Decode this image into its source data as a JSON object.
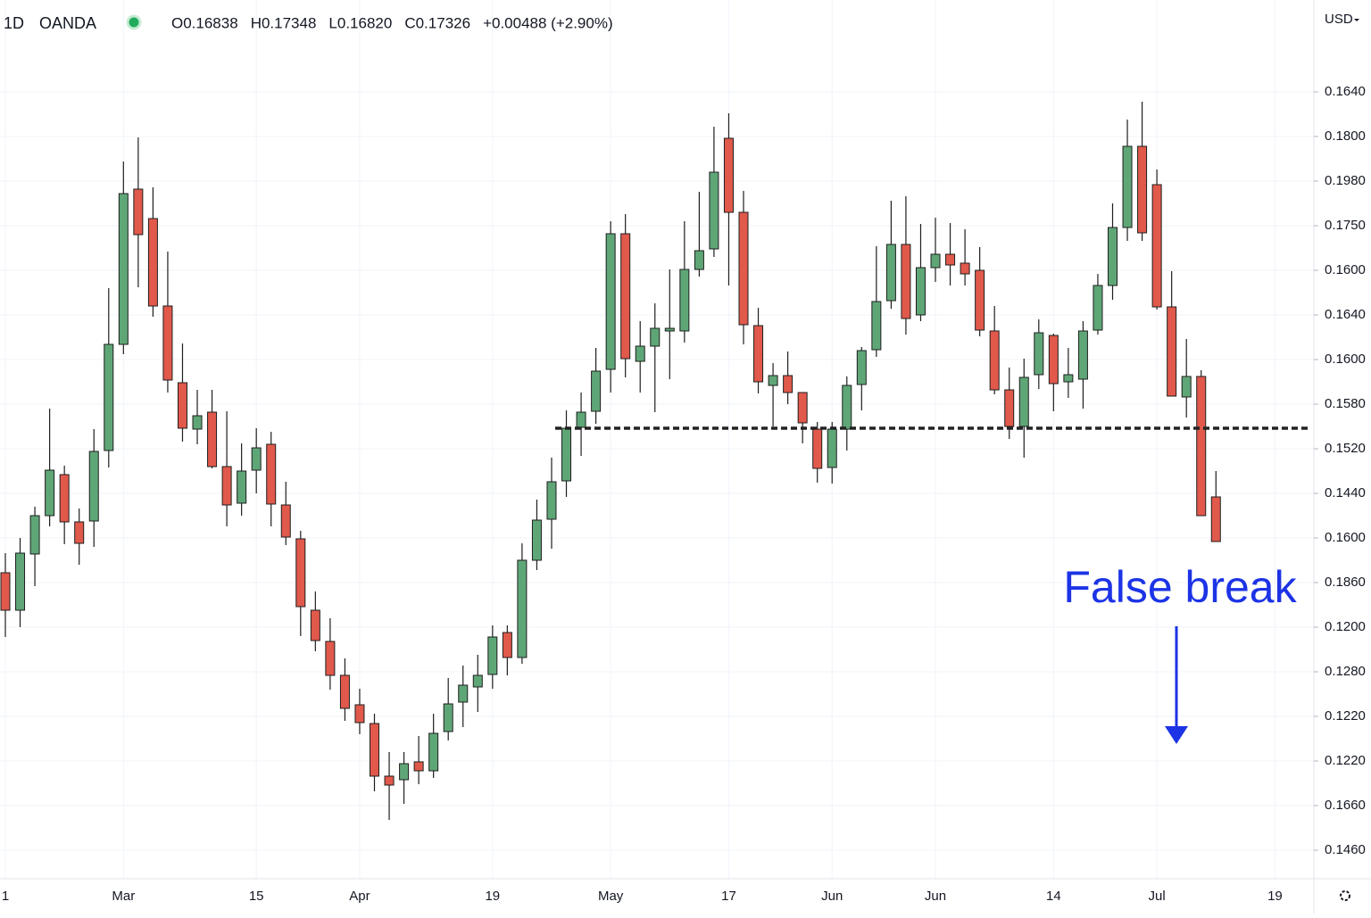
{
  "header": {
    "interval": "1D",
    "source": "OANDA",
    "ohlc": [
      "O0.16838",
      "H0.17348",
      "L0.16820",
      "C0.17326",
      "+0.00488 (+2.90%)"
    ],
    "currency": "USD"
  },
  "chart_data": {
    "type": "candlestick",
    "categories": [
      "1",
      null,
      null,
      null,
      null,
      null,
      null,
      null,
      "Mar",
      null,
      null,
      null,
      null,
      null,
      null,
      null,
      null,
      "15",
      null,
      null,
      null,
      null,
      null,
      null,
      "Apr",
      null,
      null,
      null,
      null,
      null,
      null,
      null,
      null,
      "19",
      null,
      null,
      null,
      null,
      null,
      null,
      null,
      "May",
      null,
      null,
      null,
      null,
      null,
      null,
      null,
      "17",
      null,
      null,
      null,
      null,
      null,
      null,
      "Jun",
      null,
      null,
      null,
      null,
      null,
      null,
      "Jun",
      null,
      null,
      null,
      null,
      null,
      null,
      null,
      "14",
      null,
      null,
      null,
      null,
      null,
      null,
      "Jul",
      null,
      null,
      null,
      null,
      null,
      null,
      null,
      "19"
    ],
    "open": [
      6.22,
      5.38,
      6.64,
      7.5,
      8.42,
      7.36,
      7.38,
      8.96,
      11.34,
      14.82,
      14.16,
      12.2,
      10.48,
      9.44,
      9.82,
      8.6,
      7.78,
      8.52,
      9.1,
      7.74,
      6.98,
      5.38,
      4.68,
      3.92,
      3.26,
      2.84,
      1.66,
      1.58,
      1.98,
      1.78,
      2.66,
      3.32,
      3.66,
      3.94,
      4.88,
      4.32,
      6.5,
      7.42,
      8.28,
      9.48,
      9.84,
      10.78,
      13.82,
      10.96,
      11.3,
      11.64,
      11.64,
      13.02,
      13.48,
      15.96,
      14.3,
      11.76,
      10.42,
      10.64,
      10.26,
      9.44,
      8.58,
      9.44,
      10.44,
      11.22,
      12.32,
      13.58,
      12.0,
      13.06,
      13.36,
      13.16,
      13.0,
      11.64,
      10.32,
      9.5,
      10.66,
      11.54,
      10.5,
      10.56,
      11.66,
      12.66,
      13.96,
      15.78,
      14.92,
      12.18,
      10.16,
      10.62,
      7.92,
      null,
      null,
      null,
      null
    ],
    "high": [
      6.66,
      7.0,
      7.7,
      9.9,
      8.62,
      7.66,
      9.44,
      12.6,
      15.44,
      15.98,
      14.86,
      13.42,
      11.36,
      10.32,
      10.32,
      9.84,
      9.12,
      9.46,
      9.38,
      8.26,
      7.16,
      5.8,
      5.2,
      4.3,
      3.62,
      3.06,
      2.2,
      2.2,
      2.56,
      3.06,
      3.86,
      4.14,
      4.38,
      5.04,
      5.04,
      6.88,
      7.86,
      8.8,
      9.86,
      10.26,
      11.26,
      14.1,
      14.26,
      11.86,
      12.26,
      13.02,
      14.1,
      14.76,
      16.22,
      16.52,
      14.78,
      12.16,
      10.92,
      11.18,
      10.26,
      9.6,
      9.6,
      10.62,
      11.28,
      13.54,
      14.56,
      14.66,
      14.04,
      14.18,
      14.06,
      13.92,
      13.52,
      12.2,
      10.82,
      11.02,
      11.9,
      11.58,
      11.26,
      11.86,
      12.92,
      14.5,
      16.38,
      16.78,
      15.26,
      12.98,
      11.46,
      10.76,
      8.5,
      null,
      null,
      null,
      null
    ],
    "low": [
      4.78,
      5.0,
      5.92,
      7.26,
      6.86,
      6.4,
      6.8,
      8.58,
      11.12,
      12.62,
      11.96,
      10.26,
      9.16,
      9.1,
      8.56,
      7.26,
      7.5,
      8.0,
      7.26,
      6.84,
      4.8,
      4.46,
      3.6,
      2.9,
      2.6,
      1.32,
      0.68,
      1.04,
      1.48,
      1.62,
      2.46,
      2.76,
      3.1,
      3.62,
      3.92,
      4.18,
      6.28,
      6.76,
      7.92,
      8.84,
      9.56,
      10.26,
      10.6,
      10.26,
      9.82,
      10.56,
      11.38,
      12.86,
      13.3,
      12.66,
      11.34,
      10.24,
      9.5,
      10.0,
      9.12,
      8.24,
      8.22,
      8.96,
      9.86,
      11.06,
      12.14,
      11.56,
      11.86,
      12.74,
      12.66,
      12.66,
      11.52,
      10.22,
      9.22,
      8.8,
      10.34,
      9.84,
      10.14,
      9.9,
      11.56,
      12.34,
      13.66,
      13.66,
      12.12,
      10.18,
      9.7,
      7.5,
      6.92,
      null,
      null,
      null,
      null
    ],
    "close": [
      5.38,
      6.66,
      7.5,
      8.52,
      7.36,
      6.88,
      8.94,
      11.34,
      14.72,
      13.8,
      12.2,
      10.54,
      9.46,
      9.74,
      8.6,
      7.74,
      8.5,
      9.02,
      7.76,
      7.02,
      5.46,
      4.7,
      3.92,
      3.18,
      2.86,
      1.66,
      1.46,
      1.94,
      1.78,
      2.62,
      3.28,
      3.7,
      3.92,
      4.78,
      4.32,
      6.5,
      7.4,
      8.26,
      9.46,
      9.82,
      10.74,
      13.82,
      11.02,
      11.3,
      11.7,
      11.7,
      13.02,
      13.44,
      15.2,
      14.3,
      11.78,
      10.5,
      10.64,
      10.26,
      9.58,
      8.56,
      9.44,
      10.42,
      11.2,
      12.3,
      13.58,
      11.92,
      13.06,
      13.36,
      13.12,
      12.92,
      11.66,
      10.32,
      9.5,
      10.6,
      11.6,
      10.46,
      10.66,
      11.64,
      12.66,
      13.96,
      15.78,
      13.84,
      12.18,
      10.18,
      10.62,
      7.5,
      6.92,
      null,
      null,
      null,
      null
    ],
    "up_color": "#5fa677",
    "down_color": "#e0594b",
    "level": 9.46,
    "annotation": "False break",
    "annotation_color": "#1c33e6",
    "ylim": [
      -0.6,
      19
    ],
    "yticks": [
      {
        "value": 17,
        "label": "0.1640"
      },
      {
        "value": 16,
        "label": "0.1800"
      },
      {
        "value": 15,
        "label": "0.1980"
      },
      {
        "value": 14,
        "label": "0.1750"
      },
      {
        "value": 13,
        "label": "0.1600"
      },
      {
        "value": 12,
        "label": "0.1640"
      },
      {
        "value": 11,
        "label": "0.1600"
      },
      {
        "value": 10,
        "label": "0.1580"
      },
      {
        "value": 9,
        "label": "0.1520"
      },
      {
        "value": 8,
        "label": "0.1440"
      },
      {
        "value": 7,
        "label": "0.1600"
      },
      {
        "value": 6,
        "label": "0.1860"
      },
      {
        "value": 5,
        "label": "0.1200"
      },
      {
        "value": 4,
        "label": "0.1280"
      },
      {
        "value": 3,
        "label": "0.1220"
      },
      {
        "value": 2,
        "label": "0.1220"
      },
      {
        "value": 1,
        "label": "0.1660"
      },
      {
        "value": 0,
        "label": "0.1460"
      }
    ],
    "grid": true
  }
}
